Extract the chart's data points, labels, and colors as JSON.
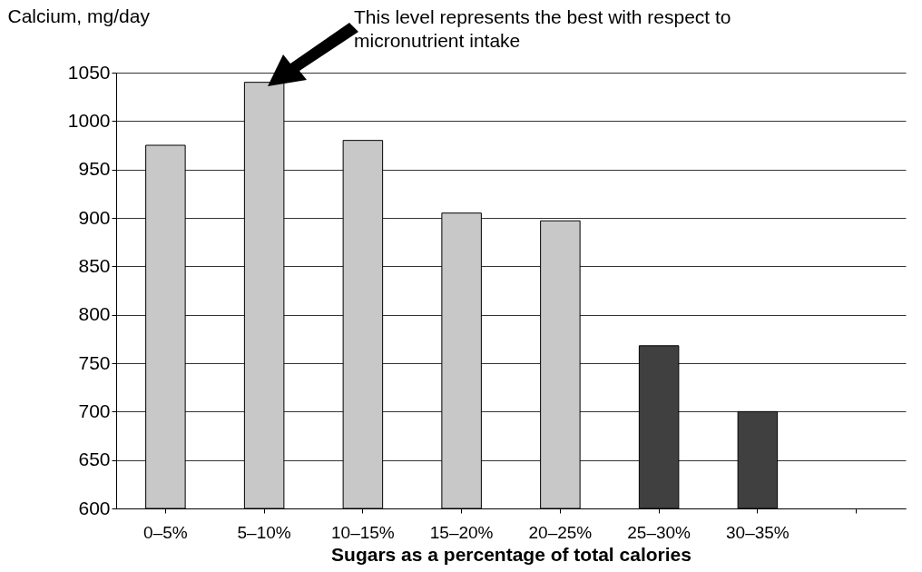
{
  "chart_data": {
    "type": "bar",
    "xlabel": "Sugars as a percentage of total calories",
    "ylabel": "Calcium, mg/day",
    "categories": [
      "0–5%",
      "5–10%",
      "10–15%",
      "15–20%",
      "20–25%",
      "25–30%",
      "30–35%",
      null
    ],
    "values": [
      975,
      1040,
      980,
      905,
      897,
      768,
      700,
      null
    ],
    "colors": [
      "#c8c8c8",
      "#c8c8c8",
      "#c8c8c8",
      "#c8c8c8",
      "#c8c8c8",
      "#404040",
      "#404040",
      "#c8c8c8"
    ],
    "ylim": [
      600,
      1050
    ],
    "yticks": [
      600,
      650,
      700,
      750,
      800,
      850,
      900,
      950,
      1000,
      1050
    ],
    "grid": "y",
    "annotations": [
      "This level represents the best with respect to micronutrient intake"
    ]
  }
}
